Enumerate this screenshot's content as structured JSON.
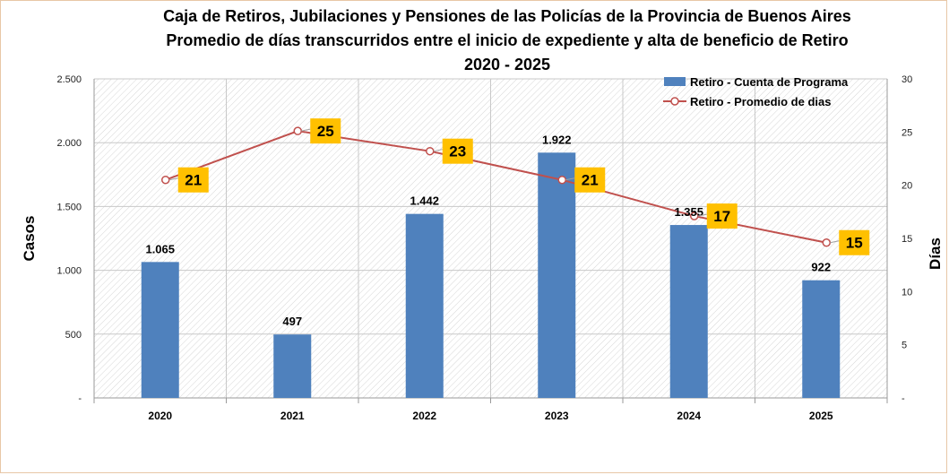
{
  "chart_data": {
    "type": "bar+line",
    "title": [
      "Caja de Retiros, Jubilaciones  y Pensiones de las Policías de la Provincia de Buenos Aires",
      "Promedio de días transcurridos  entre el inicio de expediente y alta de beneficio de Retiro",
      "2020 - 2025"
    ],
    "categories": [
      "2020",
      "2021",
      "2022",
      "2023",
      "2024",
      "2025"
    ],
    "series": [
      {
        "name": "Retiro - Cuenta de Programa",
        "type": "bar",
        "axis": "left",
        "color": "#4f81bd",
        "values": [
          1065,
          497,
          1442,
          1922,
          1355,
          922
        ],
        "labels": [
          "1.065",
          "497",
          "1.442",
          "1.922",
          "1.355",
          "922"
        ]
      },
      {
        "name": "Retiro - Promedio de dias",
        "type": "line",
        "axis": "right",
        "color": "#c0504d",
        "values": [
          20.5,
          25.1,
          23.2,
          20.5,
          17.1,
          14.6
        ],
        "labels": [
          "21",
          "25",
          "23",
          "21",
          "17",
          "15"
        ],
        "label_background": "#ffc000"
      }
    ],
    "ylabel": "Casos",
    "y2label": "Días",
    "ylim": [
      0,
      2500
    ],
    "y2lim": [
      0,
      30
    ],
    "y_ticks": [
      "-",
      "500",
      "1.000",
      "1.500",
      "2.000",
      "2.500"
    ],
    "y2_ticks": [
      "-",
      "5",
      "10",
      "15",
      "20",
      "25",
      "30"
    ],
    "grid": true,
    "legend_position": "top-right"
  }
}
